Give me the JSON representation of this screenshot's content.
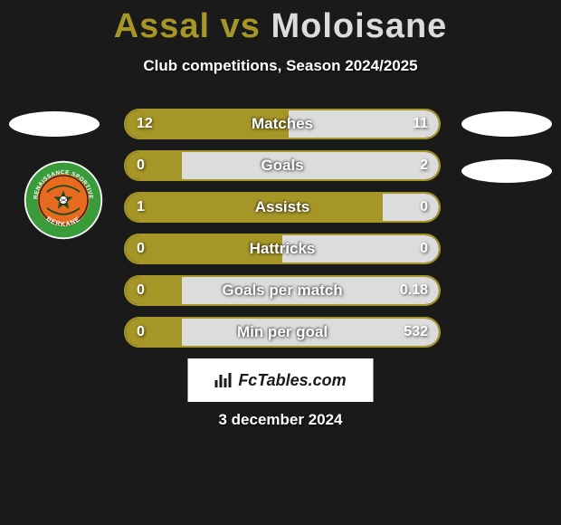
{
  "title": {
    "player1": "Assal",
    "vs": " vs ",
    "player2": "Moloisane",
    "player1_color": "#a69627",
    "player2_color": "#dcdcdc"
  },
  "subtitle": "Club competitions, Season 2024/2025",
  "accent_colors": {
    "left": "#a69627",
    "right": "#dcdcdc",
    "border": "#a69627"
  },
  "bars": [
    {
      "label": "Matches",
      "left": "12",
      "right": "11",
      "left_pct": 52,
      "right_pct": 48
    },
    {
      "label": "Goals",
      "left": "0",
      "right": "2",
      "left_pct": 18,
      "right_pct": 82
    },
    {
      "label": "Assists",
      "left": "1",
      "right": "0",
      "left_pct": 82,
      "right_pct": 18
    },
    {
      "label": "Hattricks",
      "left": "0",
      "right": "0",
      "left_pct": 50,
      "right_pct": 50
    },
    {
      "label": "Goals per match",
      "left": "0",
      "right": "0.18",
      "left_pct": 18,
      "right_pct": 82
    },
    {
      "label": "Min per goal",
      "left": "0",
      "right": "532",
      "left_pct": 18,
      "right_pct": 82
    }
  ],
  "footer_brand": "FcTables.com",
  "date": "3 december 2024",
  "club_logo": {
    "name": "Renaissance Sportive Berkane",
    "outer_ring": "#3a9b3a",
    "inner_circle": "#e86a1f",
    "text_color": "#ffffff"
  }
}
